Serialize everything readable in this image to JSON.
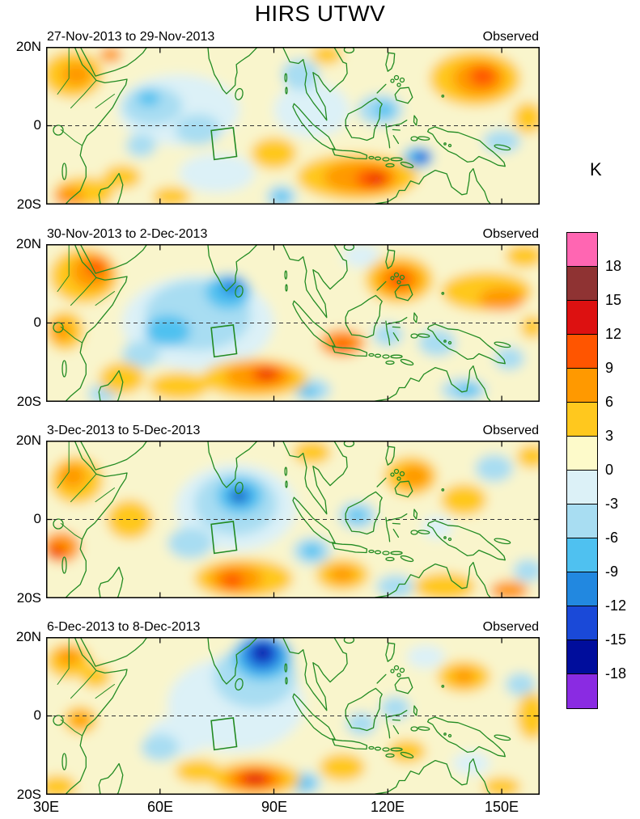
{
  "title": "HIRS UTWV",
  "axes": {
    "x_ticks": [
      "30E",
      "60E",
      "90E",
      "120E",
      "150E"
    ],
    "y_ticks": [
      "20N",
      "0",
      "20S"
    ]
  },
  "panels": [
    {
      "date_range": "27-Nov-2013 to 29-Nov-2013",
      "source": "Observed"
    },
    {
      "date_range": "30-Nov-2013 to 2-Dec-2013",
      "source": "Observed"
    },
    {
      "date_range": "3-Dec-2013 to 5-Dec-2013",
      "source": "Observed"
    },
    {
      "date_range": "6-Dec-2013 to 8-Dec-2013",
      "source": "Observed"
    }
  ],
  "colorbar": {
    "unit": "K",
    "tick_labels": [
      "18",
      "15",
      "12",
      "9",
      "6",
      "3",
      "0",
      "-3",
      "-6",
      "-9",
      "-12",
      "-15",
      "-18"
    ]
  },
  "chart_data": {
    "type": "heatmap",
    "title": "HIRS UTWV",
    "subtitle": "Filled-contour anomaly maps of upper-tropospheric water vapor, four 3-day periods, each labeled Observed",
    "units": "K",
    "lon_range": [
      30,
      160
    ],
    "lat_range": [
      -20,
      20
    ],
    "x_tick_lons": [
      30,
      60,
      90,
      120,
      150
    ],
    "y_tick_lats": [
      20,
      0,
      -20
    ],
    "levels": [
      -18,
      -15,
      -12,
      -9,
      -6,
      -3,
      0,
      3,
      6,
      9,
      12,
      15,
      18
    ],
    "palette_low_to_high": [
      "#8A2BE2",
      "#000D9C",
      "#1A49D8",
      "#2288E0",
      "#4FC1F0",
      "#A8DDF2",
      "#DCF1F7",
      "#FDFACA",
      "#FFC81E",
      "#FF9900",
      "#FF5500",
      "#DD1111",
      "#8F3333",
      "#FF66B2"
    ],
    "base_color": "#F9F5CC",
    "coast_color": "#228B22",
    "study_box_lon_lat": [
      [
        73.5,
        -1.2
      ],
      [
        79.3,
        -0.5
      ],
      [
        80.2,
        -7.8
      ],
      [
        74.3,
        -8.6
      ]
    ],
    "anomaly_format": [
      "lon",
      "lat",
      "rx_deg",
      "ry_deg",
      "value_K"
    ],
    "panels": [
      {
        "anomalies": [
          [
            65,
            4,
            16,
            9,
            -1
          ],
          [
            100,
            4,
            10,
            7,
            -1
          ],
          [
            75,
            -12,
            10,
            5,
            -1
          ],
          [
            58,
            5,
            8,
            5,
            -4
          ],
          [
            70,
            -1,
            6,
            4,
            -4
          ],
          [
            97,
            13,
            5,
            4,
            -4
          ],
          [
            118,
            4,
            6,
            4,
            -4
          ],
          [
            150,
            -4,
            5,
            3,
            -4
          ],
          [
            92,
            -18,
            4,
            3,
            -4
          ],
          [
            55,
            -5,
            4,
            3,
            -4
          ],
          [
            57,
            7,
            3,
            2,
            -7
          ],
          [
            119,
            4,
            2.5,
            2,
            -7
          ],
          [
            92,
            -18,
            2,
            1.5,
            -7
          ],
          [
            128,
            -8,
            4,
            2.8,
            -7
          ],
          [
            129,
            -8,
            2,
            1.4,
            -13
          ],
          [
            37,
            13,
            8,
            6,
            5
          ],
          [
            38,
            13,
            4,
            3,
            7
          ],
          [
            47,
            18,
            3,
            2,
            8
          ],
          [
            143,
            12,
            12,
            7,
            5
          ],
          [
            144,
            12,
            7,
            4.5,
            7
          ],
          [
            145,
            12.5,
            3.5,
            2.5,
            10
          ],
          [
            157,
            2,
            4,
            4,
            5
          ],
          [
            104,
            18,
            4,
            2.5,
            5
          ],
          [
            112,
            -13,
            16,
            6,
            5
          ],
          [
            113,
            -13,
            10,
            4,
            7
          ],
          [
            116,
            -13.5,
            4.5,
            2.5,
            10
          ],
          [
            117,
            -13.5,
            1.8,
            1.1,
            13
          ],
          [
            90,
            -7,
            6,
            4,
            5
          ],
          [
            40,
            -17,
            8,
            4,
            4
          ],
          [
            36,
            -18,
            4,
            2.5,
            6
          ],
          [
            50,
            -13,
            5,
            3,
            4
          ],
          [
            63,
            -18,
            5,
            2.5,
            4
          ]
        ]
      },
      {
        "anomalies": [
          [
            70,
            0,
            20,
            12,
            -1
          ],
          [
            70,
            2,
            14,
            9,
            -4
          ],
          [
            78,
            8,
            6,
            4.5,
            -7
          ],
          [
            79,
            9,
            3,
            2,
            -10
          ],
          [
            62,
            -2,
            6,
            4,
            -7
          ],
          [
            55,
            -8,
            5,
            3.5,
            -4
          ],
          [
            100,
            -17,
            5,
            3,
            -4
          ],
          [
            99,
            -17.5,
            2.5,
            1.5,
            -7
          ],
          [
            140,
            -17,
            6,
            3,
            -4
          ],
          [
            141,
            -17,
            3,
            1.5,
            -7
          ],
          [
            133,
            -5,
            5,
            3.5,
            -4
          ],
          [
            120,
            -3,
            4,
            3,
            -4
          ],
          [
            152,
            -9,
            4,
            3,
            -4
          ],
          [
            45,
            -18,
            4,
            2.5,
            -4
          ],
          [
            113,
            17,
            5,
            3,
            -1
          ],
          [
            40,
            12,
            9,
            7,
            5
          ],
          [
            42,
            13,
            5.5,
            4.5,
            7
          ],
          [
            43,
            14,
            2.5,
            2,
            10
          ],
          [
            35,
            -2,
            5,
            5,
            5
          ],
          [
            34,
            -2,
            2.5,
            2.5,
            7
          ],
          [
            85,
            -14,
            14,
            5,
            5
          ],
          [
            86,
            -13.5,
            9,
            3.5,
            7
          ],
          [
            88,
            -13,
            4,
            2,
            10
          ],
          [
            88,
            -13,
            1.8,
            1,
            13
          ],
          [
            65,
            -16,
            8,
            3.5,
            4
          ],
          [
            50,
            -14,
            6,
            4,
            4
          ],
          [
            108,
            -5,
            6,
            3.5,
            6
          ],
          [
            108,
            -5.5,
            2.5,
            1.5,
            10
          ],
          [
            123,
            11,
            9,
            6,
            5
          ],
          [
            123,
            11,
            6,
            4,
            7
          ],
          [
            123,
            11,
            3,
            2.2,
            11
          ],
          [
            146,
            8,
            12,
            5,
            4
          ],
          [
            150,
            6,
            6,
            3,
            6
          ],
          [
            156,
            17,
            5,
            3,
            5
          ],
          [
            158,
            -1,
            3,
            3,
            5
          ]
        ]
      },
      {
        "anomalies": [
          [
            80,
            3,
            16,
            11,
            -2
          ],
          [
            80,
            4,
            11,
            8,
            -4
          ],
          [
            81,
            6,
            6,
            4.5,
            -7
          ],
          [
            81,
            6,
            3,
            2.2,
            -10
          ],
          [
            80.5,
            6,
            1.3,
            1,
            -16
          ],
          [
            68,
            -6,
            6,
            4,
            -4
          ],
          [
            100,
            -8,
            5,
            3.5,
            -4
          ],
          [
            100,
            -8,
            2.5,
            1.8,
            -7
          ],
          [
            112,
            1,
            5,
            3.5,
            -4
          ],
          [
            112,
            1,
            2.2,
            1.6,
            -7
          ],
          [
            122,
            -17,
            5,
            3,
            -4
          ],
          [
            148,
            13,
            5,
            3.5,
            -4
          ],
          [
            157,
            -13,
            4,
            3,
            -4
          ],
          [
            133,
            -2,
            4,
            3,
            -1
          ],
          [
            38,
            10,
            7,
            6,
            5
          ],
          [
            37,
            11,
            3.5,
            3,
            7
          ],
          [
            34,
            -7,
            5,
            4,
            6
          ],
          [
            33,
            -8,
            2.2,
            1.8,
            10
          ],
          [
            32.5,
            -8.5,
            1.2,
            1,
            13
          ],
          [
            52,
            0,
            6,
            5,
            4
          ],
          [
            82,
            -15,
            13,
            5,
            5
          ],
          [
            80,
            -15,
            7,
            3.5,
            7
          ],
          [
            79,
            -15.5,
            3,
            2,
            10
          ],
          [
            108,
            -14,
            7,
            4,
            5
          ],
          [
            108,
            -14,
            3.5,
            2,
            7
          ],
          [
            135,
            -17,
            8,
            3.5,
            4
          ],
          [
            152,
            -18,
            5,
            2.5,
            6
          ],
          [
            126,
            11,
            7,
            5,
            5
          ],
          [
            127,
            11,
            4,
            2.8,
            8
          ],
          [
            140,
            5,
            6,
            4,
            4
          ],
          [
            158,
            16,
            4,
            3,
            5
          ],
          [
            100,
            17,
            5,
            3,
            4
          ]
        ]
      },
      {
        "anomalies": [
          [
            80,
            3,
            18,
            12,
            -2
          ],
          [
            85,
            10,
            11,
            8,
            -4
          ],
          [
            87,
            15,
            8,
            6,
            -7
          ],
          [
            87,
            15.5,
            5.5,
            4.5,
            -10
          ],
          [
            87,
            16,
            3.5,
            3,
            -13
          ],
          [
            87,
            16,
            2,
            1.8,
            -16
          ],
          [
            65,
            -5,
            8,
            5,
            -2
          ],
          [
            60,
            -8,
            5,
            3.5,
            -4
          ],
          [
            98,
            -17,
            4.5,
            3,
            -4
          ],
          [
            98,
            -17,
            2.5,
            1.7,
            -8
          ],
          [
            113,
            -2,
            4,
            3,
            -4
          ],
          [
            122,
            2,
            4,
            3,
            -4
          ],
          [
            155,
            8,
            4,
            3,
            -4
          ],
          [
            130,
            15,
            5,
            3,
            -1
          ],
          [
            142,
            -12,
            5,
            3,
            -1
          ],
          [
            36,
            14,
            6,
            4.5,
            5
          ],
          [
            36,
            15,
            3,
            2.2,
            7
          ],
          [
            43,
            10,
            4,
            3,
            5
          ],
          [
            39,
            -1,
            4.5,
            3.5,
            5
          ],
          [
            39,
            -1,
            2.2,
            1.8,
            7
          ],
          [
            33,
            -18,
            5,
            3,
            5
          ],
          [
            85,
            -16,
            12,
            4.5,
            5
          ],
          [
            85,
            -16,
            8,
            3.2,
            7
          ],
          [
            85,
            -16,
            5,
            2.2,
            10
          ],
          [
            85,
            -16,
            2.8,
            1.4,
            13
          ],
          [
            70,
            -14,
            6,
            3,
            4
          ],
          [
            108,
            -13,
            6,
            3.5,
            5
          ],
          [
            140,
            10,
            7,
            4,
            4
          ],
          [
            140,
            10,
            3,
            2,
            6
          ],
          [
            158,
            0,
            4,
            6,
            5
          ],
          [
            125,
            -9,
            5,
            3,
            4
          ],
          [
            150,
            -18,
            5,
            2.5,
            4
          ]
        ]
      }
    ]
  }
}
